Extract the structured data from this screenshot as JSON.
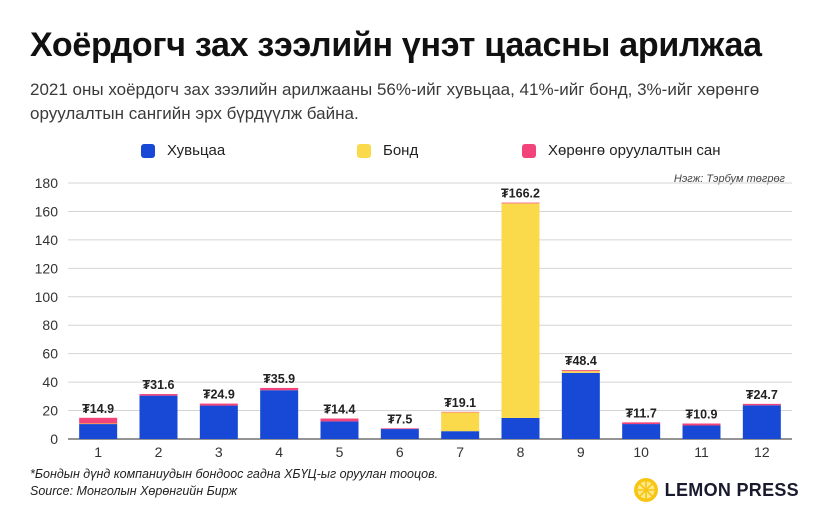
{
  "header": {
    "title": "Хоёрдогч зах зээлийн үнэт цаасны арилжаа",
    "subtitle": "2021 оны хоёрдогч зах зээлийн арилжааны 56%-ийг хувьцаа, 41%-ийг бонд, 3%-ийг хөрөнгө оруулалтын сангийн эрх бүрдүүлж байна."
  },
  "legend": [
    {
      "label": "Хувьцаа",
      "color": "#1749d6"
    },
    {
      "label": "Бонд",
      "color": "#fad94a"
    },
    {
      "label": "Хөрөнгө оруулалтын сан",
      "color": "#f2447a"
    }
  ],
  "unit_note": "Нэгж: Тэрбум төгрөг",
  "chart_data": {
    "type": "bar",
    "stacked": true,
    "categories": [
      "1",
      "2",
      "3",
      "4",
      "5",
      "6",
      "7",
      "8",
      "9",
      "10",
      "11",
      "12"
    ],
    "series": [
      {
        "name": "Хувьцаа",
        "color": "#1749d6",
        "values": [
          10.5,
          30.5,
          23.5,
          34.3,
          12.4,
          7.0,
          5.5,
          14.8,
          46.5,
          10.5,
          9.5,
          23.7
        ]
      },
      {
        "name": "Бонд",
        "color": "#fad94a",
        "values": [
          0.4,
          0,
          0,
          0,
          0,
          0,
          13.3,
          150.9,
          1.2,
          0,
          0,
          0
        ]
      },
      {
        "name": "Хөрөнгө оруулалтын сан",
        "color": "#f2447a",
        "values": [
          4.0,
          1.1,
          1.4,
          1.6,
          2.0,
          0.5,
          0.3,
          0.5,
          0.7,
          1.2,
          1.4,
          1.0
        ]
      }
    ],
    "totals": [
      14.9,
      31.6,
      24.9,
      35.9,
      14.4,
      7.5,
      19.1,
      166.2,
      48.4,
      11.7,
      10.9,
      24.7
    ],
    "total_labels": [
      "₮14.9",
      "₮31.6",
      "₮24.9",
      "₮35.9",
      "₮14.4",
      "₮7.5",
      "₮19.1",
      "₮166.2",
      "₮48.4",
      "₮11.7",
      "₮10.9",
      "₮24.7"
    ],
    "yticks": [
      0,
      20,
      40,
      60,
      80,
      100,
      120,
      140,
      160,
      180
    ],
    "ylim": [
      0,
      180
    ],
    "grid": true,
    "legend_position": "top"
  },
  "footer": {
    "note": "*Бондын дүнд компаниудын бондоос гадна ХБҮЦ-ыг оруулан тооцов.",
    "source": "Source: Монголын Хөрөнгийн Бирж",
    "brand": "LEMON PRESS"
  }
}
